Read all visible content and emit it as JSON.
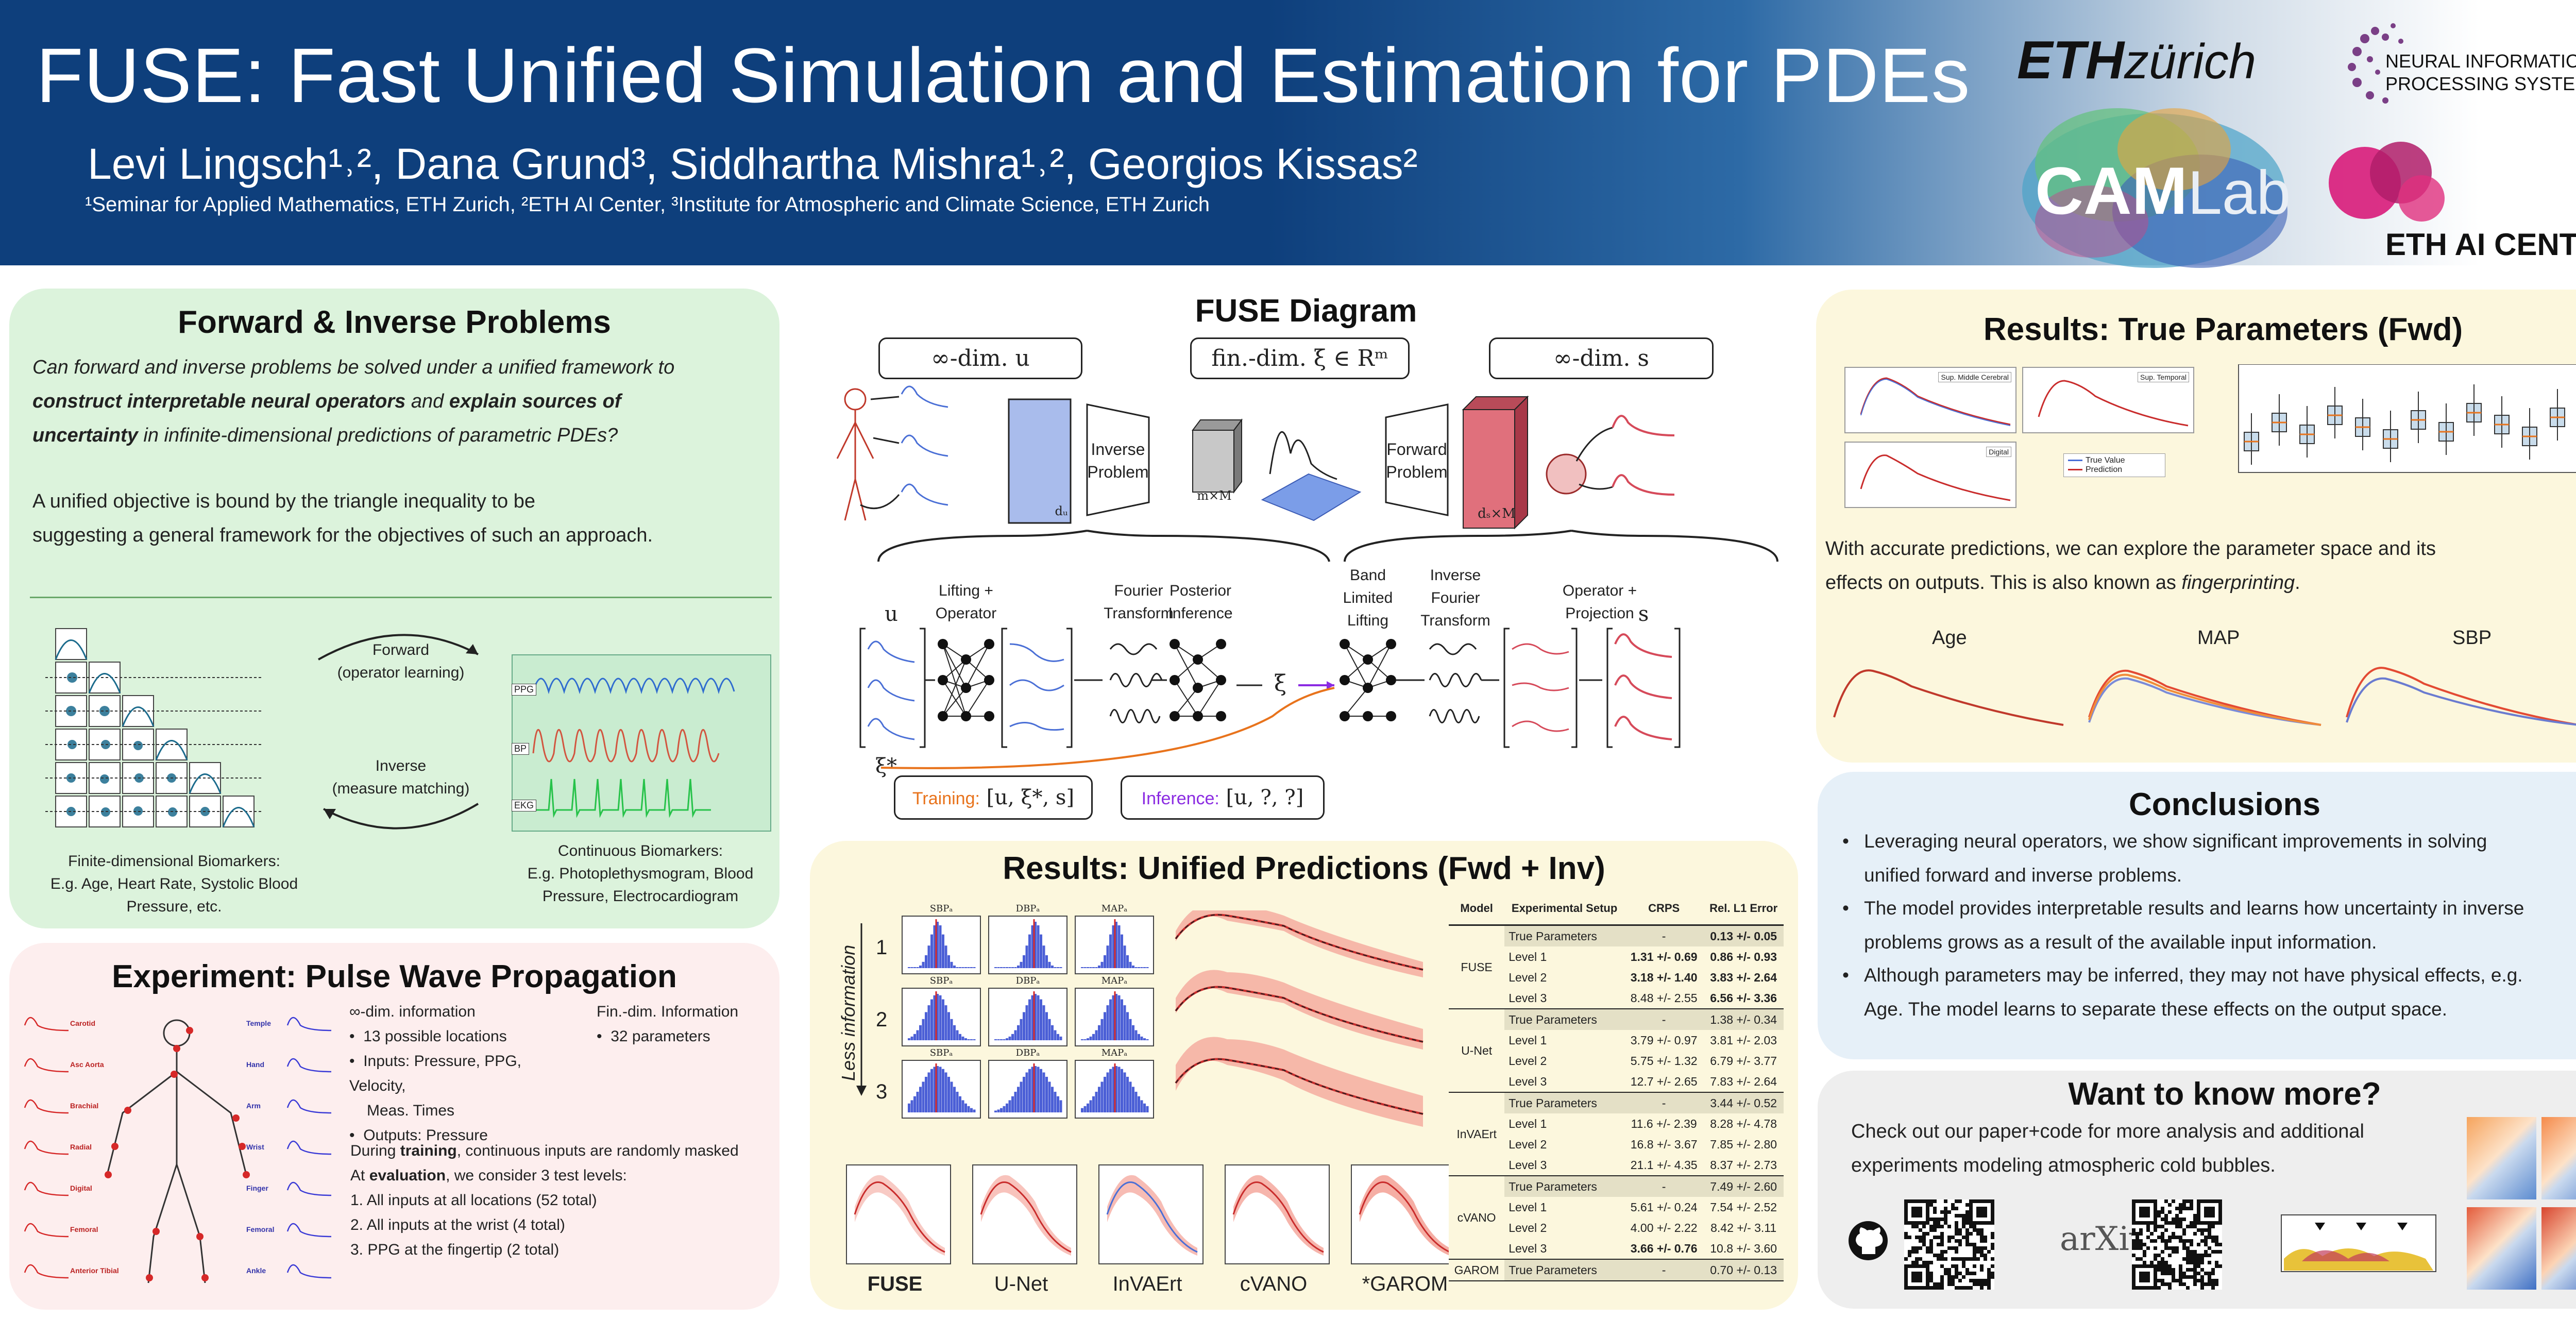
{
  "header": {
    "title": "FUSE: Fast Unified Simulation and Estimation for PDEs",
    "authors": "Levi Lingsch¹˒², Dana Grund³, Siddhartha Mishra¹˒², Georgios Kissas²",
    "affiliations": "¹Seminar for Applied Mathematics, ETH Zurich, ²ETH AI Center, ³Institute for Atmospheric and Climate Science, ETH Zurich",
    "logos": {
      "eth_a": "ETH",
      "eth_b": "zürich",
      "neurips_1": "NEURAL INFORMATION",
      "neurips_2": "PROCESSING SYSTEMS",
      "camlab_a": "CAM",
      "camlab_b": "Lab",
      "ai_center": "ETH AI CENTER"
    }
  },
  "forward_inverse": {
    "title": "Forward & Inverse Problems",
    "question_1": "Can forward and inverse problems be solved under a unified framework to",
    "question_2a": "construct interpretable neural operators",
    "question_2b": " and ",
    "question_2c": "explain sources of",
    "question_3a": "uncertainty",
    "question_3b": " in infinite-dimensional predictions of parametric PDEs?",
    "objective_1": "A unified objective is bound by the triangle inequality to be",
    "objective_2": "suggesting a general framework for the objectives of such an approach.",
    "forward_label_1": "Forward",
    "forward_label_2": "(operator learning)",
    "inverse_label_1": "Inverse",
    "inverse_label_2": "(measure matching)",
    "finite_caption_1": "Finite-dimensional Biomarkers:",
    "finite_caption_2": "E.g. Age, Heart Rate, Systolic Blood",
    "finite_caption_3": "Pressure, etc.",
    "cont_caption_1": "Continuous Biomarkers:",
    "cont_caption_2": "E.g. Photoplethysmogram, Blood",
    "cont_caption_3": "Pressure, Electrocardiogram",
    "signal_tags": [
      "PPG",
      "BP",
      "EKG"
    ]
  },
  "experiment": {
    "title": "Experiment: Pulse Wave Propagation",
    "inf_dim_label": "∞-dim. information",
    "inf_dim_items": [
      "13 possible locations",
      "Inputs: Pressure, PPG, Velocity,",
      "Meas. Times",
      "Outputs: Pressure"
    ],
    "fin_dim_label": "Fin.-dim. Information",
    "fin_dim_items": [
      "32 parameters"
    ],
    "training_a": "During ",
    "training_b": "training",
    "training_c": ", continuous inputs are randomly masked",
    "evaluation_a": "At ",
    "evaluation_b": "evaluation",
    "evaluation_c": ", we consider 3 test levels:",
    "levels": [
      "1.  All inputs at all locations (52 total)",
      "2.  All inputs at the wrist (4 total)",
      "3.  PPG at the fingertip (2 total)"
    ],
    "left_sites": [
      "Carotid",
      "Asc Aorta",
      "Brachial",
      "Radial",
      "Digital",
      "Femoral",
      "Anterior Tibial"
    ],
    "right_sites": [
      "Temple",
      "Hand",
      "Arm",
      "Wrist",
      "Finger",
      "Femoral",
      "Ankle"
    ]
  },
  "diagram": {
    "title": "FUSE Diagram",
    "box_u": "∞-dim. u",
    "box_xi": "fin.-dim. ξ ∈ Rᵐ",
    "box_s": "∞-dim. s",
    "inverse_problem_1": "Inverse",
    "inverse_problem_2": "Problem",
    "forward_problem_1": "Forward",
    "forward_problem_2": "Problem",
    "mxm": "m×M",
    "du": "dᵤ",
    "dsm": "dₛ×M",
    "u_label": "u",
    "s_label": "s",
    "xi_label": "ξ",
    "xistar_label": "ξ*",
    "stages": [
      {
        "l1": "Lifting +",
        "l2": "Operator"
      },
      {
        "l1": "Fourier",
        "l2": "Transform"
      },
      {
        "l1": "Posterior",
        "l2": "Inference"
      }
    ],
    "stages_right": [
      {
        "l1": "Band",
        "l2": "Limited",
        "l3": "Lifting"
      },
      {
        "l1": "Inverse",
        "l2": "Fourier",
        "l3": "Transform"
      },
      {
        "l1": "Operator +",
        "l2": "Projection"
      }
    ],
    "training_label": "Training:",
    "training_value": " [u, ξ*, s]",
    "inference_label": "Inference:",
    "inference_value": " [u, ?, ?]",
    "colors": {
      "training": "#e8731c",
      "inference": "#8b2be2",
      "u_block": "#a9bcec",
      "s_block": "#e0707c"
    }
  },
  "unified": {
    "title": "Results: Unified Predictions (Fwd + Inv)",
    "less_info": "Less information",
    "row_labels": [
      "1",
      "2",
      "3"
    ],
    "hist_titles": [
      "SBPₐ",
      "DBPₐ",
      "MAPₐ"
    ],
    "model_names": [
      "FUSE",
      "U-Net",
      "InVAErt",
      "cVANO",
      "*GAROM"
    ],
    "table": {
      "headers": [
        "Model",
        "Experimental Setup",
        "CRPS",
        "Rel. L1 Error"
      ],
      "groups": [
        {
          "model": "FUSE",
          "rows": [
            {
              "setup": "True Parameters",
              "crps": "-",
              "err": "0.13 +/- 0.05",
              "crps_bold": false,
              "err_bold": true
            },
            {
              "setup": "Level 1",
              "crps": "1.31 +/- 0.69",
              "err": "0.86 +/- 0.93",
              "crps_bold": true,
              "err_bold": true
            },
            {
              "setup": "Level 2",
              "crps": "3.18 +/- 1.40",
              "err": "3.83 +/- 2.64",
              "crps_bold": true,
              "err_bold": true
            },
            {
              "setup": "Level 3",
              "crps": "8.48 +/- 2.55",
              "err": "6.56 +/- 3.36",
              "crps_bold": false,
              "err_bold": true
            }
          ]
        },
        {
          "model": "U-Net",
          "rows": [
            {
              "setup": "True Parameters",
              "crps": "-",
              "err": "1.38 +/- 0.34"
            },
            {
              "setup": "Level 1",
              "crps": "3.79 +/- 0.97",
              "err": "3.81 +/- 2.03"
            },
            {
              "setup": "Level 2",
              "crps": "5.75 +/- 1.32",
              "err": "6.79 +/- 3.77"
            },
            {
              "setup": "Level 3",
              "crps": "12.7 +/- 2.65",
              "err": "7.83 +/- 2.64"
            }
          ]
        },
        {
          "model": "InVAErt",
          "rows": [
            {
              "setup": "True Parameters",
              "crps": "-",
              "err": "3.44 +/- 0.52"
            },
            {
              "setup": "Level 1",
              "crps": "11.6 +/- 2.39",
              "err": "8.28 +/- 4.78"
            },
            {
              "setup": "Level 2",
              "crps": "16.8 +/- 3.67",
              "err": "7.85 +/- 2.80"
            },
            {
              "setup": "Level 3",
              "crps": "21.1 +/- 4.35",
              "err": "8.37 +/- 2.73"
            }
          ]
        },
        {
          "model": "cVANO",
          "rows": [
            {
              "setup": "True Parameters",
              "crps": "-",
              "err": "7.49 +/- 2.60"
            },
            {
              "setup": "Level 1",
              "crps": "5.61 +/- 0.24",
              "err": "7.54 +/- 2.52"
            },
            {
              "setup": "Level 2",
              "crps": "4.00 +/- 2.22",
              "err": "8.42 +/- 3.11"
            },
            {
              "setup": "Level 3",
              "crps": "3.66 +/- 0.76",
              "err": "10.8 +/- 3.60",
              "crps_bold": true
            }
          ]
        },
        {
          "model": "GAROM",
          "rows": [
            {
              "setup": "True Parameters",
              "crps": "-",
              "err": "0.70 +/- 0.13"
            }
          ]
        }
      ]
    }
  },
  "true_params": {
    "title": "Results: True Parameters (Fwd)",
    "text_1": "With accurate predictions, we can explore the parameter space and its",
    "text_2a": "effects on outputs. This is also known as ",
    "text_2b": "fingerprinting",
    "text_2c": ".",
    "fp_labels": [
      "Age",
      "MAP",
      "SBP"
    ],
    "mini_tags": [
      "Sup. Middle Cerebral",
      "Sup. Temporal",
      "Digital"
    ],
    "legend": [
      "True Value",
      "Prediction"
    ]
  },
  "conclusions": {
    "title": "Conclusions",
    "b1_1": "Leveraging neural operators, we show significant improvements in solving",
    "b1_2": "unified forward and inverse problems.",
    "b2_1": "The model provides interpretable results and learns how uncertainty in inverse",
    "b2_2": "problems grows as a result of the available input information.",
    "b3_1": "Although parameters may be inferred, they may not have physical effects, e.g.",
    "b3_2": "Age. The model learns to separate these effects on the output space."
  },
  "more": {
    "title": "Want to know more?",
    "text_1": "Check out our paper+code for more analysis and additional",
    "text_2": "experiments modeling atmospheric cold bubbles.",
    "arxiv": "arXiv"
  }
}
